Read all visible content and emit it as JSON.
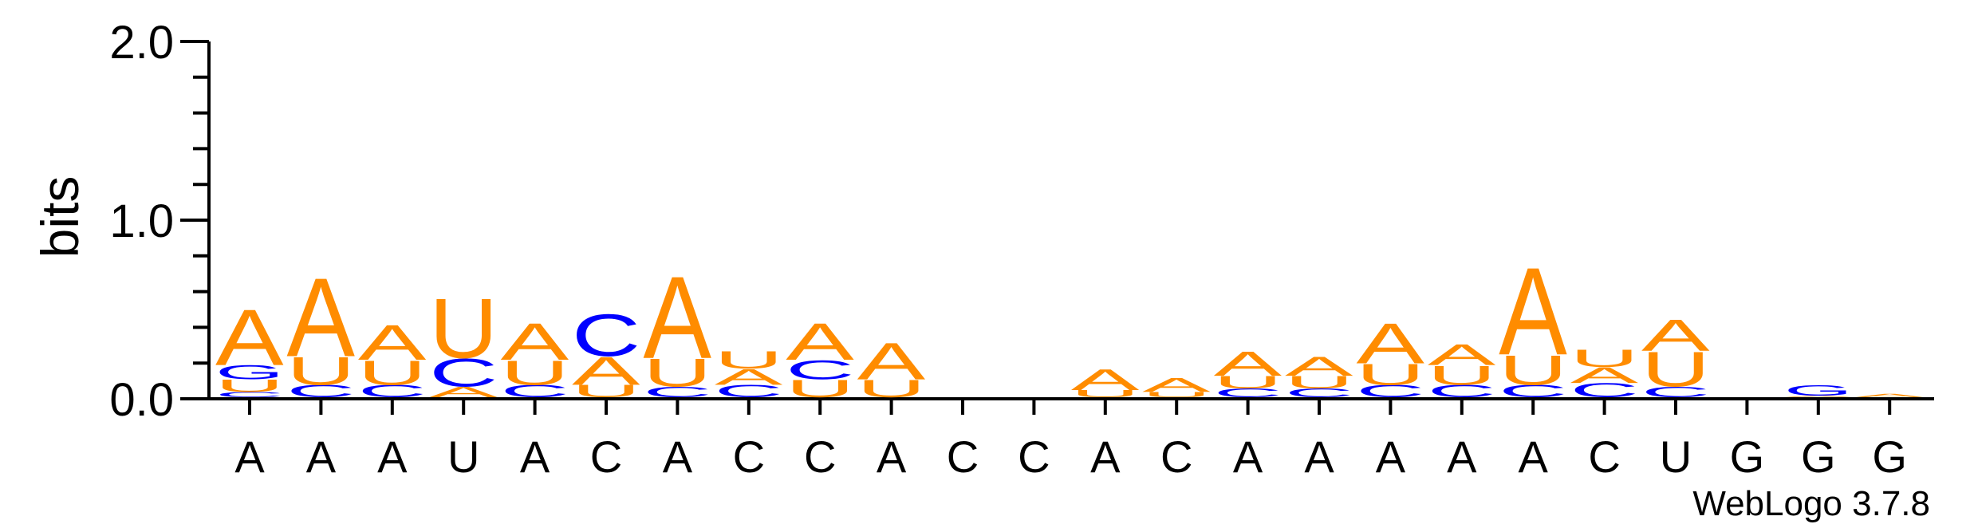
{
  "chart_data": {
    "type": "sequence-logo",
    "ylabel": "bits",
    "ylim": [
      0,
      2.0
    ],
    "yticks": [
      "0.0",
      "1.0",
      "2.0"
    ],
    "footer": "WebLogo 3.7.8",
    "colors": {
      "A": "#ff8c00",
      "U": "#ff8c00",
      "C": "#0000ff",
      "G": "#0000ff"
    },
    "positions": [
      {
        "label": "A",
        "stack": [
          {
            "l": "C",
            "h": 0.03
          },
          {
            "l": "U",
            "h": 0.07
          },
          {
            "l": "G",
            "h": 0.08
          },
          {
            "l": "A",
            "h": 0.32
          }
        ]
      },
      {
        "label": "A",
        "stack": [
          {
            "l": "C",
            "h": 0.07
          },
          {
            "l": "U",
            "h": 0.16
          },
          {
            "l": "A",
            "h": 0.45
          }
        ]
      },
      {
        "label": "A",
        "stack": [
          {
            "l": "C",
            "h": 0.07
          },
          {
            "l": "U",
            "h": 0.14
          },
          {
            "l": "A",
            "h": 0.2
          }
        ]
      },
      {
        "label": "U",
        "stack": [
          {
            "l": "A",
            "h": 0.06
          },
          {
            "l": "C",
            "h": 0.16
          },
          {
            "l": "U",
            "h": 0.34
          }
        ]
      },
      {
        "label": "A",
        "stack": [
          {
            "l": "C",
            "h": 0.07
          },
          {
            "l": "U",
            "h": 0.14
          },
          {
            "l": "A",
            "h": 0.21
          }
        ]
      },
      {
        "label": "C",
        "stack": [
          {
            "l": "U",
            "h": 0.07
          },
          {
            "l": "A",
            "h": 0.16
          },
          {
            "l": "C",
            "h": 0.24
          }
        ]
      },
      {
        "label": "A",
        "stack": [
          {
            "l": "C",
            "h": 0.06
          },
          {
            "l": "U",
            "h": 0.16
          },
          {
            "l": "A",
            "h": 0.47
          }
        ]
      },
      {
        "label": "C",
        "stack": [
          {
            "l": "C",
            "h": 0.07
          },
          {
            "l": "A",
            "h": 0.09
          },
          {
            "l": "U",
            "h": 0.1
          }
        ]
      },
      {
        "label": "C",
        "stack": [
          {
            "l": "U",
            "h": 0.1
          },
          {
            "l": "C",
            "h": 0.11
          },
          {
            "l": "A",
            "h": 0.21
          }
        ]
      },
      {
        "label": "A",
        "stack": [
          {
            "l": "U",
            "h": 0.1
          },
          {
            "l": "A",
            "h": 0.21
          }
        ]
      },
      {
        "label": "C",
        "stack": []
      },
      {
        "label": "C",
        "stack": []
      },
      {
        "label": "A",
        "stack": [
          {
            "l": "U",
            "h": 0.04
          },
          {
            "l": "A",
            "h": 0.12
          }
        ]
      },
      {
        "label": "C",
        "stack": [
          {
            "l": "U",
            "h": 0.03
          },
          {
            "l": "A",
            "h": 0.08
          }
        ]
      },
      {
        "label": "A",
        "stack": [
          {
            "l": "C",
            "h": 0.05
          },
          {
            "l": "U",
            "h": 0.07
          },
          {
            "l": "A",
            "h": 0.14
          }
        ]
      },
      {
        "label": "A",
        "stack": [
          {
            "l": "C",
            "h": 0.05
          },
          {
            "l": "U",
            "h": 0.07
          },
          {
            "l": "A",
            "h": 0.11
          }
        ]
      },
      {
        "label": "A",
        "stack": [
          {
            "l": "C",
            "h": 0.07
          },
          {
            "l": "U",
            "h": 0.12
          },
          {
            "l": "A",
            "h": 0.23
          }
        ]
      },
      {
        "label": "A",
        "stack": [
          {
            "l": "C",
            "h": 0.07
          },
          {
            "l": "U",
            "h": 0.11
          },
          {
            "l": "A",
            "h": 0.12
          }
        ]
      },
      {
        "label": "A",
        "stack": [
          {
            "l": "C",
            "h": 0.07
          },
          {
            "l": "U",
            "h": 0.17
          },
          {
            "l": "A",
            "h": 0.5
          }
        ]
      },
      {
        "label": "C",
        "stack": [
          {
            "l": "C",
            "h": 0.08
          },
          {
            "l": "A",
            "h": 0.09
          },
          {
            "l": "U",
            "h": 0.1
          }
        ]
      },
      {
        "label": "U",
        "stack": [
          {
            "l": "C",
            "h": 0.06
          },
          {
            "l": "U",
            "h": 0.2
          },
          {
            "l": "A",
            "h": 0.18
          }
        ]
      },
      {
        "label": "G",
        "stack": []
      },
      {
        "label": "G",
        "stack": [
          {
            "l": "A",
            "h": 0.01
          },
          {
            "l": "G",
            "h": 0.06
          }
        ]
      },
      {
        "label": "G",
        "stack": [
          {
            "l": "A",
            "h": 0.02
          }
        ]
      }
    ]
  }
}
